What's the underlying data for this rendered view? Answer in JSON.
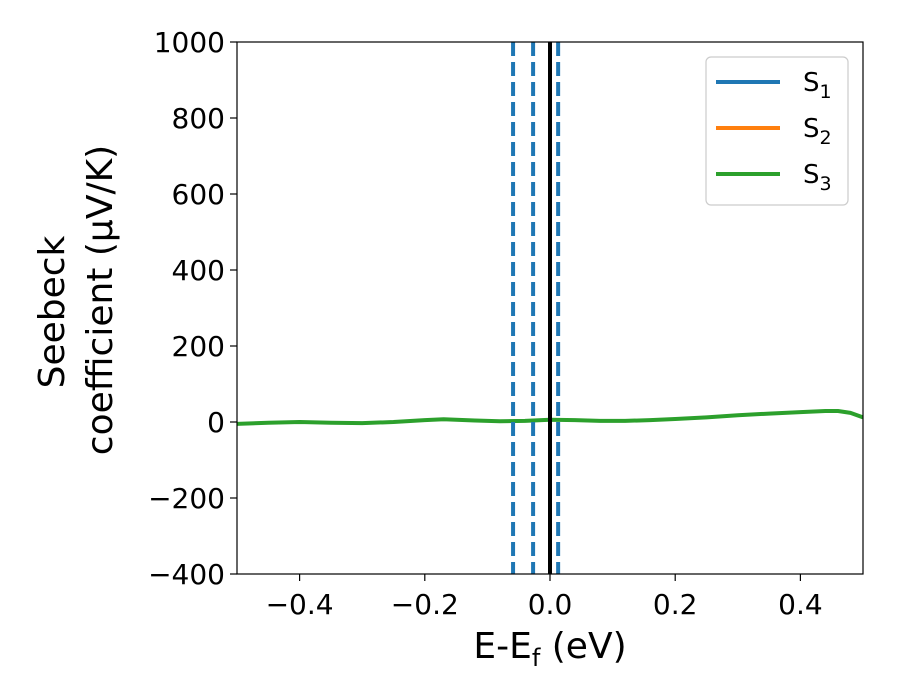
{
  "chart_data": {
    "type": "line",
    "xlabel": {
      "main": "E-E",
      "sub": "f",
      "unit": " (eV)"
    },
    "ylabel": {
      "line1": "Seebeck",
      "line2": "coefficient  (μV/K)"
    },
    "xlim": [
      -0.5,
      0.5
    ],
    "ylim": [
      -400,
      1000
    ],
    "x_ticks": [
      -0.4,
      -0.2,
      0.0,
      0.2,
      0.4
    ],
    "x_tick_labels": [
      "−0.4",
      "−0.2",
      "0.0",
      "0.2",
      "0.4"
    ],
    "y_ticks": [
      -400,
      -200,
      0,
      200,
      400,
      600,
      800,
      1000
    ],
    "y_tick_labels": [
      "−400",
      "−200",
      "0",
      "200",
      "400",
      "600",
      "800",
      "1000"
    ],
    "legend_position": "top-right",
    "series": [
      {
        "name": "S",
        "sub": "1",
        "color": "#1f77b4",
        "x": [],
        "y": []
      },
      {
        "name": "S",
        "sub": "2",
        "color": "#ff7f0e",
        "x": [],
        "y": []
      },
      {
        "name": "S",
        "sub": "3",
        "color": "#2ca02c",
        "x": [
          -0.5,
          -0.45,
          -0.4,
          -0.35,
          -0.3,
          -0.25,
          -0.2,
          -0.17,
          -0.12,
          -0.08,
          -0.04,
          0.0,
          0.04,
          0.08,
          0.12,
          0.16,
          0.2,
          0.25,
          0.3,
          0.35,
          0.4,
          0.44,
          0.46,
          0.48,
          0.5
        ],
        "y": [
          -5,
          -2,
          0,
          -2,
          -3,
          0,
          5,
          7,
          4,
          2,
          3,
          6,
          5,
          3,
          3,
          5,
          8,
          12,
          18,
          22,
          26,
          29,
          29,
          24,
          12
        ]
      }
    ],
    "vertical_lines": [
      {
        "x": -0.059,
        "style": "dashed",
        "color": "#1f77b4"
      },
      {
        "x": -0.027,
        "style": "dashed",
        "color": "#1f77b4"
      },
      {
        "x": 0.013,
        "style": "dashed",
        "color": "#1f77b4"
      },
      {
        "x": 0.0,
        "style": "solid",
        "color": "#000000"
      }
    ]
  }
}
